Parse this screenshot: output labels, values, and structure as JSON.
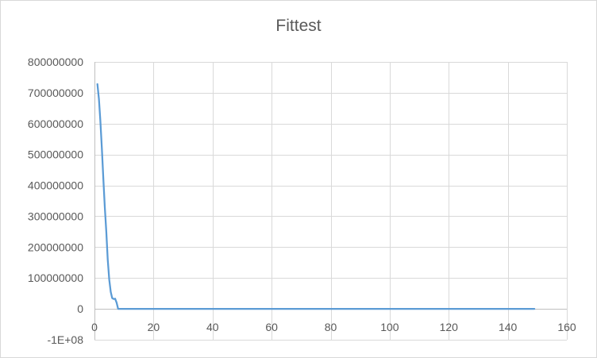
{
  "chart_data": {
    "type": "line",
    "title": "Fittest",
    "xlabel": "",
    "ylabel": "",
    "xlim": [
      0,
      160
    ],
    "ylim": [
      -100000000,
      800000000
    ],
    "x_ticks": [
      0,
      20,
      40,
      60,
      80,
      100,
      120,
      140,
      160
    ],
    "x_tick_labels": [
      "0",
      "20",
      "40",
      "60",
      "80",
      "100",
      "120",
      "140",
      "160"
    ],
    "y_ticks": [
      -100000000,
      0,
      100000000,
      200000000,
      300000000,
      400000000,
      500000000,
      600000000,
      700000000,
      800000000
    ],
    "y_tick_labels": [
      "-1E+08",
      "0",
      "100000000",
      "200000000",
      "300000000",
      "400000000",
      "500000000",
      "600000000",
      "700000000",
      "800000000"
    ],
    "grid": true,
    "legend": "none",
    "series": [
      {
        "color": "#5b9bd5",
        "x": [
          1,
          1.5,
          2,
          2.5,
          3,
          3.5,
          4,
          4.5,
          5,
          5.5,
          6,
          6.5,
          7,
          7.5,
          8,
          9,
          10,
          20,
          40,
          60,
          80,
          100,
          120,
          140,
          149
        ],
        "y": [
          728000000,
          680000000,
          610000000,
          520000000,
          420000000,
          330000000,
          250000000,
          160000000,
          95000000,
          55000000,
          35000000,
          32000000,
          33000000,
          20000000,
          0,
          0,
          0,
          0,
          0,
          0,
          0,
          0,
          0,
          0,
          0
        ]
      }
    ]
  }
}
